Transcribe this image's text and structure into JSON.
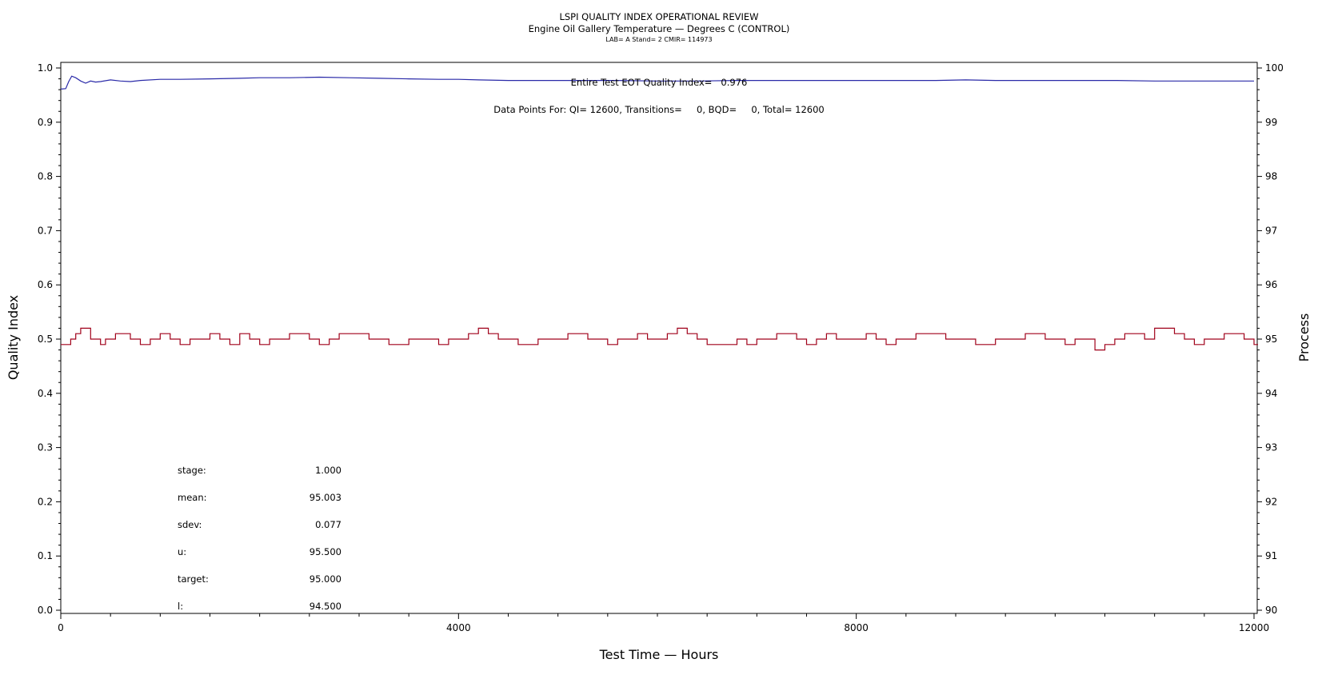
{
  "chart_data": {
    "type": "line",
    "title": "LSPI QUALITY INDEX OPERATIONAL REVIEW",
    "subtitle": "Engine Oil Gallery Temperature — Degrees C (CONTROL)",
    "subtitle2": "LAB= A Stand= 2 CMIR= 114973",
    "xlabel": "Test Time — Hours",
    "ylabel_left": "Quality Index",
    "ylabel_right": "Process",
    "xlim": [
      0,
      12000
    ],
    "ylim_left": [
      0.0,
      1.0
    ],
    "ylim_right": [
      90,
      100
    ],
    "xticks": [
      "0",
      "4000",
      "8000",
      "12000"
    ],
    "yticks_left": [
      "0.0",
      "0.1",
      "0.2",
      "0.3",
      "0.4",
      "0.5",
      "0.6",
      "0.7",
      "0.8",
      "0.9",
      "1.0"
    ],
    "yticks_right": [
      "90",
      "91",
      "92",
      "93",
      "94",
      "95",
      "96",
      "97",
      "98",
      "99",
      "100"
    ],
    "grid": false,
    "annotations": {
      "quality_index": "Entire Test EOT Quality Index=   0.976",
      "data_points": "Data Points For: QI= 12600, Transitions=     0, BQD=     0, Total= 12600"
    },
    "stats": [
      {
        "label": "stage:",
        "value": "1.000"
      },
      {
        "label": "mean:",
        "value": "95.003"
      },
      {
        "label": "sdev:",
        "value": "0.077"
      },
      {
        "label": "u:",
        "value": "95.500"
      },
      {
        "label": "target:",
        "value": "95.000"
      },
      {
        "label": "l:",
        "value": "94.500"
      }
    ],
    "series": [
      {
        "axis": "left",
        "color": "#2a2aa8",
        "x": [
          0,
          50,
          80,
          110,
          150,
          200,
          250,
          300,
          350,
          400,
          500,
          600,
          700,
          800,
          1000,
          1200,
          1500,
          1800,
          2000,
          2300,
          2600,
          2900,
          3200,
          3500,
          3800,
          4000,
          4200,
          4500,
          4800,
          5200,
          5600,
          6000,
          6400,
          6800,
          7200,
          7600,
          8000,
          8400,
          8800,
          9100,
          9400,
          9800,
          10200,
          10600,
          11000,
          11400,
          11800,
          12000
        ],
        "y": [
          0.961,
          0.962,
          0.975,
          0.985,
          0.982,
          0.976,
          0.972,
          0.976,
          0.974,
          0.975,
          0.978,
          0.976,
          0.975,
          0.977,
          0.979,
          0.979,
          0.98,
          0.981,
          0.982,
          0.982,
          0.983,
          0.982,
          0.981,
          0.98,
          0.979,
          0.979,
          0.978,
          0.977,
          0.977,
          0.977,
          0.977,
          0.976,
          0.976,
          0.977,
          0.977,
          0.977,
          0.977,
          0.977,
          0.977,
          0.978,
          0.977,
          0.977,
          0.977,
          0.977,
          0.976,
          0.976,
          0.976,
          0.976
        ]
      },
      {
        "axis": "right",
        "color": "#a0001a",
        "x": [
          0,
          100,
          150,
          200,
          300,
          400,
          450,
          550,
          700,
          800,
          900,
          1000,
          1100,
          1200,
          1300,
          1400,
          1500,
          1600,
          1700,
          1800,
          1900,
          2000,
          2100,
          2200,
          2300,
          2400,
          2500,
          2600,
          2700,
          2800,
          2900,
          3000,
          3100,
          3200,
          3300,
          3400,
          3500,
          3600,
          3700,
          3800,
          3900,
          4000,
          4100,
          4200,
          4300,
          4400,
          4500,
          4600,
          4700,
          4800,
          4900,
          5000,
          5100,
          5200,
          5300,
          5400,
          5500,
          5600,
          5700,
          5800,
          5900,
          6000,
          6100,
          6200,
          6300,
          6400,
          6500,
          6600,
          6700,
          6800,
          6900,
          7000,
          7100,
          7200,
          7300,
          7400,
          7500,
          7600,
          7700,
          7800,
          7900,
          8000,
          8100,
          8200,
          8300,
          8400,
          8500,
          8600,
          8700,
          8800,
          8900,
          9000,
          9100,
          9200,
          9300,
          9400,
          9500,
          9600,
          9700,
          9800,
          9900,
          10000,
          10100,
          10200,
          10300,
          10400,
          10500,
          10600,
          10700,
          10800,
          10900,
          11000,
          11100,
          11200,
          11300,
          11400,
          11500,
          11600,
          11700,
          11800,
          11900,
          12000
        ],
        "y": [
          94.9,
          95.0,
          95.1,
          95.2,
          95.0,
          94.9,
          95.0,
          95.1,
          95.0,
          94.9,
          95.0,
          95.1,
          95.0,
          94.9,
          95.0,
          95.0,
          95.1,
          95.0,
          94.9,
          95.1,
          95.0,
          94.9,
          95.0,
          95.0,
          95.1,
          95.1,
          95.0,
          94.9,
          95.0,
          95.1,
          95.1,
          95.1,
          95.0,
          95.0,
          94.9,
          94.9,
          95.0,
          95.0,
          95.0,
          94.9,
          95.0,
          95.0,
          95.1,
          95.2,
          95.1,
          95.0,
          95.0,
          94.9,
          94.9,
          95.0,
          95.0,
          95.0,
          95.1,
          95.1,
          95.0,
          95.0,
          94.9,
          95.0,
          95.0,
          95.1,
          95.0,
          95.0,
          95.1,
          95.2,
          95.1,
          95.0,
          94.9,
          94.9,
          94.9,
          95.0,
          94.9,
          95.0,
          95.0,
          95.1,
          95.1,
          95.0,
          94.9,
          95.0,
          95.1,
          95.0,
          95.0,
          95.0,
          95.1,
          95.0,
          94.9,
          95.0,
          95.0,
          95.1,
          95.1,
          95.1,
          95.0,
          95.0,
          95.0,
          94.9,
          94.9,
          95.0,
          95.0,
          95.0,
          95.1,
          95.1,
          95.0,
          95.0,
          94.9,
          95.0,
          95.0,
          94.8,
          94.9,
          95.0,
          95.1,
          95.1,
          95.0,
          95.2,
          95.2,
          95.1,
          95.0,
          94.9,
          95.0,
          95.0,
          95.1,
          95.1,
          95.0,
          94.9
        ]
      }
    ]
  }
}
